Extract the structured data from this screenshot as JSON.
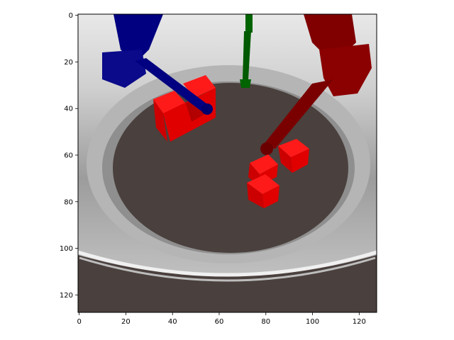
{
  "colors": {
    "background_top": "#e6e6e6",
    "background_mid": "#a9a9a9",
    "bowl_rim_light": "#f0f0f0",
    "bowl_floor": "#4a403d",
    "table": "#4a403d",
    "cube": "#ff0000",
    "cube_shadow": "#b30000",
    "arm_blue": "#000080",
    "arm_red": "#800000",
    "arm_green": "#006400"
  },
  "image_axes": {
    "x_ticks": [
      "0",
      "20",
      "40",
      "60",
      "80",
      "100",
      "120"
    ],
    "y_ticks": [
      "0",
      "20",
      "40",
      "60",
      "80",
      "100",
      "120"
    ]
  },
  "scene_objects": [
    {
      "name": "blue-robot-arm",
      "color": "arm_blue"
    },
    {
      "name": "green-robot-arm",
      "color": "arm_green"
    },
    {
      "name": "red-robot-arm",
      "color": "arm_red"
    },
    {
      "name": "red-cube-cluster-left",
      "color": "cube"
    },
    {
      "name": "red-cube-cluster-right",
      "color": "cube"
    },
    {
      "name": "bowl",
      "color": "bowl_floor"
    }
  ]
}
